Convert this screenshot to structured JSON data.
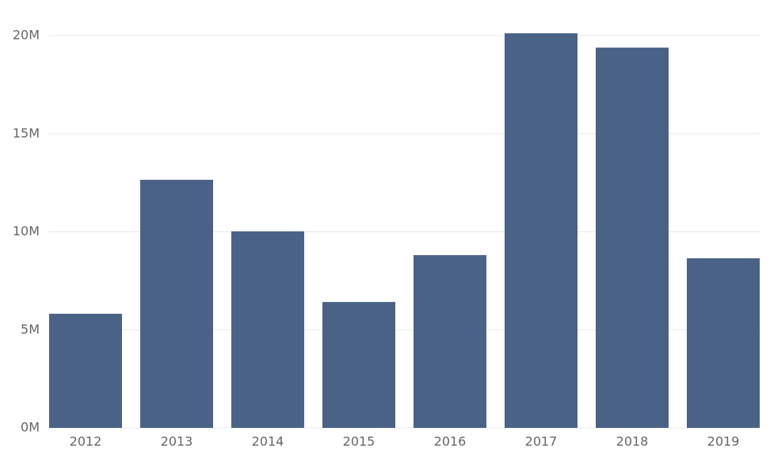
{
  "chart_data": {
    "type": "bar",
    "categories": [
      "2012",
      "2013",
      "2014",
      "2015",
      "2016",
      "2017",
      "2018",
      "2019"
    ],
    "values": [
      5820000,
      12650000,
      10020000,
      6420000,
      8810000,
      20120000,
      19390000,
      8650000
    ],
    "color": "#4a6286",
    "ylim": [
      0,
      20000000
    ],
    "yticks": [
      {
        "value": 0,
        "label": "0M"
      },
      {
        "value": 5000000,
        "label": "5M"
      },
      {
        "value": 10000000,
        "label": "10M"
      },
      {
        "value": 15000000,
        "label": "15M"
      },
      {
        "value": 20000000,
        "label": "20M"
      }
    ],
    "grid": true
  }
}
